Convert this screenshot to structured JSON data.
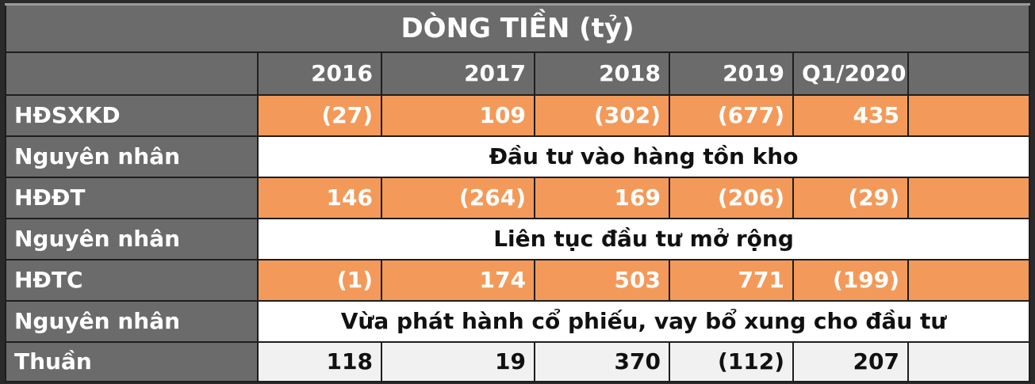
{
  "title": "DÒNG TIỀN (tỷ)",
  "columns": [
    "",
    "2016",
    "2017",
    "2018",
    "2019",
    "Q1/2020",
    ""
  ],
  "rows": [
    {
      "label": "HĐSXKD",
      "values": [
        "(27)",
        "109",
        "(302)",
        "(677)",
        "435",
        ""
      ]
    },
    {
      "label": "Nguyên nhân",
      "reason": "Đầu tư vào hàng tồn kho"
    },
    {
      "label": "HĐĐT",
      "values": [
        "146",
        "(264)",
        "169",
        "(206)",
        "(29)",
        ""
      ]
    },
    {
      "label": "Nguyên nhân",
      "reason": "Liên tục đầu tư mở rộng"
    },
    {
      "label": "HĐTC",
      "values": [
        "(1)",
        "174",
        "503",
        "771",
        "(199)",
        ""
      ]
    },
    {
      "label": "Nguyên nhân",
      "reason": "Vừa phát hành cổ phiếu, vay bổ xung cho đầu tư"
    },
    {
      "label": "Thuần",
      "values": [
        "118",
        "19",
        "370",
        "(112)",
        "207",
        ""
      ]
    }
  ],
  "colors": {
    "header_gray": "#6b6b6b",
    "data_orange": "#f39a5a",
    "reason_white": "#ffffff",
    "net_light": "#f1f1f1"
  }
}
